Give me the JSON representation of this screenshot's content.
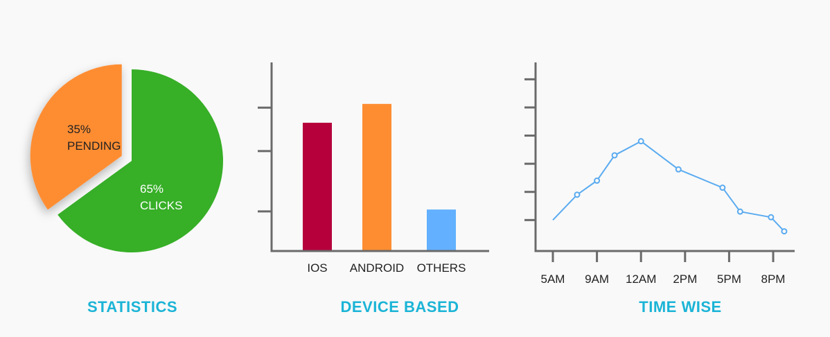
{
  "colors": {
    "background": "#f9f9f9",
    "clicks_green": "#37af27",
    "pending_orange": "#fe8d32",
    "ios_red": "#b5003c",
    "android_orange": "#fe8d32",
    "others_blue": "#62b0ff",
    "line_blue": "#5aabf0",
    "axis_gray": "#6a6a6a",
    "caption_cyan": "#1bb4d6"
  },
  "chart_data": [
    {
      "type": "pie",
      "title": "STATISTICS",
      "slices": [
        {
          "value": 65,
          "percent_label": "65%",
          "name": "CLICKS",
          "color": "#37af27"
        },
        {
          "value": 35,
          "percent_label": "35%",
          "name": "PENDING",
          "color": "#fe8d32",
          "exploded": true
        }
      ]
    },
    {
      "type": "bar",
      "title": "DEVICE BASED",
      "categories": [
        "IOS",
        "ANDROID",
        "OTHERS"
      ],
      "values": [
        68,
        78,
        22
      ],
      "colors": [
        "#b5003c",
        "#fe8d32",
        "#62b0ff"
      ],
      "ylim": [
        0,
        100
      ],
      "y_ticks": [
        21,
        53,
        76
      ],
      "grid": false
    },
    {
      "type": "line",
      "title": "TIME WISE",
      "x_tick_labels": [
        "5AM",
        "9AM",
        "12AM",
        "2PM",
        "5PM",
        "8PM"
      ],
      "x_ticks": [
        0,
        2,
        4,
        6,
        8,
        10
      ],
      "x": [
        0,
        1.1,
        2.0,
        2.8,
        4.0,
        5.7,
        7.7,
        8.5,
        9.9,
        10.5
      ],
      "y": [
        20,
        38,
        48,
        66,
        76,
        56,
        43,
        26,
        22,
        12
      ],
      "ylim": [
        -2,
        132
      ],
      "y_ticks": [
        20,
        40,
        60,
        80,
        100,
        120
      ],
      "grid": false
    }
  ]
}
